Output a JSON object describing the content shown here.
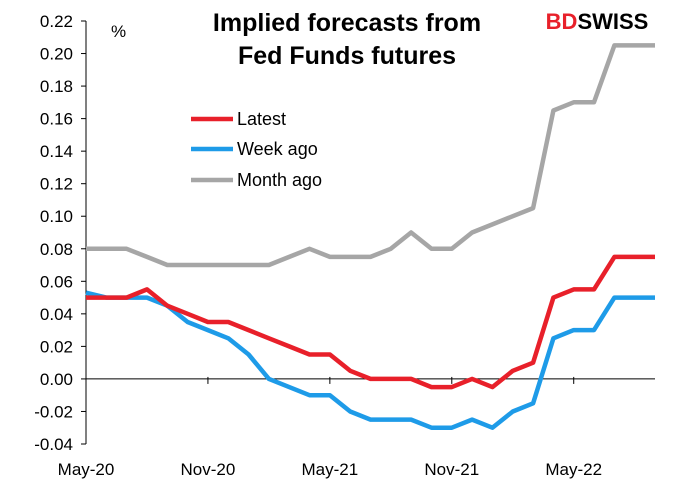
{
  "chart_data": {
    "type": "line",
    "title_line1": "Implied forecasts from",
    "title_line2": "Fed Funds futures",
    "ylabel": "%",
    "ylim": [
      -0.04,
      0.22
    ],
    "yticks": [
      "0.22",
      "0.20",
      "0.18",
      "0.16",
      "0.14",
      "0.12",
      "0.10",
      "0.08",
      "0.06",
      "0.04",
      "0.02",
      "0.00",
      "-0.02",
      "-0.04"
    ],
    "xticks": [
      "May-20",
      "Nov-20",
      "May-21",
      "Nov-21",
      "May-22"
    ],
    "grid": false,
    "legend_position": "top-left",
    "x_months": [
      "2020-05",
      "2020-06",
      "2020-07",
      "2020-08",
      "2020-09",
      "2020-10",
      "2020-11",
      "2020-12",
      "2021-01",
      "2021-02",
      "2021-03",
      "2021-04",
      "2021-05",
      "2021-06",
      "2021-07",
      "2021-08",
      "2021-09",
      "2021-10",
      "2021-11",
      "2021-12",
      "2022-01",
      "2022-02",
      "2022-03",
      "2022-04",
      "2022-05",
      "2022-06",
      "2022-07",
      "2022-08",
      "2022-09"
    ],
    "series": [
      {
        "name": "Latest",
        "color": "#e8202a",
        "values": [
          0.05,
          0.05,
          0.05,
          0.055,
          0.045,
          0.04,
          0.035,
          0.035,
          0.03,
          0.025,
          0.02,
          0.015,
          0.015,
          0.005,
          0.0,
          0.0,
          0.0,
          -0.005,
          -0.005,
          0.0,
          -0.005,
          0.005,
          0.01,
          0.05,
          0.055,
          0.055,
          0.075,
          0.075,
          0.075
        ]
      },
      {
        "name": "Week ago",
        "color": "#1e9be8",
        "values": [
          0.053,
          0.05,
          0.05,
          0.05,
          0.045,
          0.035,
          0.03,
          0.025,
          0.015,
          0.0,
          -0.005,
          -0.01,
          -0.01,
          -0.02,
          -0.025,
          -0.025,
          -0.025,
          -0.03,
          -0.03,
          -0.025,
          -0.03,
          -0.02,
          -0.015,
          0.025,
          0.03,
          0.03,
          0.05,
          0.05,
          0.05
        ]
      },
      {
        "name": "Month ago",
        "color": "#a6a6a6",
        "values": [
          0.08,
          0.08,
          0.08,
          0.075,
          0.07,
          0.07,
          0.07,
          0.07,
          0.07,
          0.07,
          0.075,
          0.08,
          0.075,
          0.075,
          0.075,
          0.08,
          0.09,
          0.08,
          0.08,
          0.09,
          0.095,
          0.1,
          0.105,
          0.165,
          0.17,
          0.17,
          0.205,
          0.205,
          0.205
        ]
      }
    ]
  },
  "brand": {
    "part1": "BD",
    "part2": "SWISS",
    "color_part1": "#e8202a",
    "color_part2": "#000000"
  }
}
